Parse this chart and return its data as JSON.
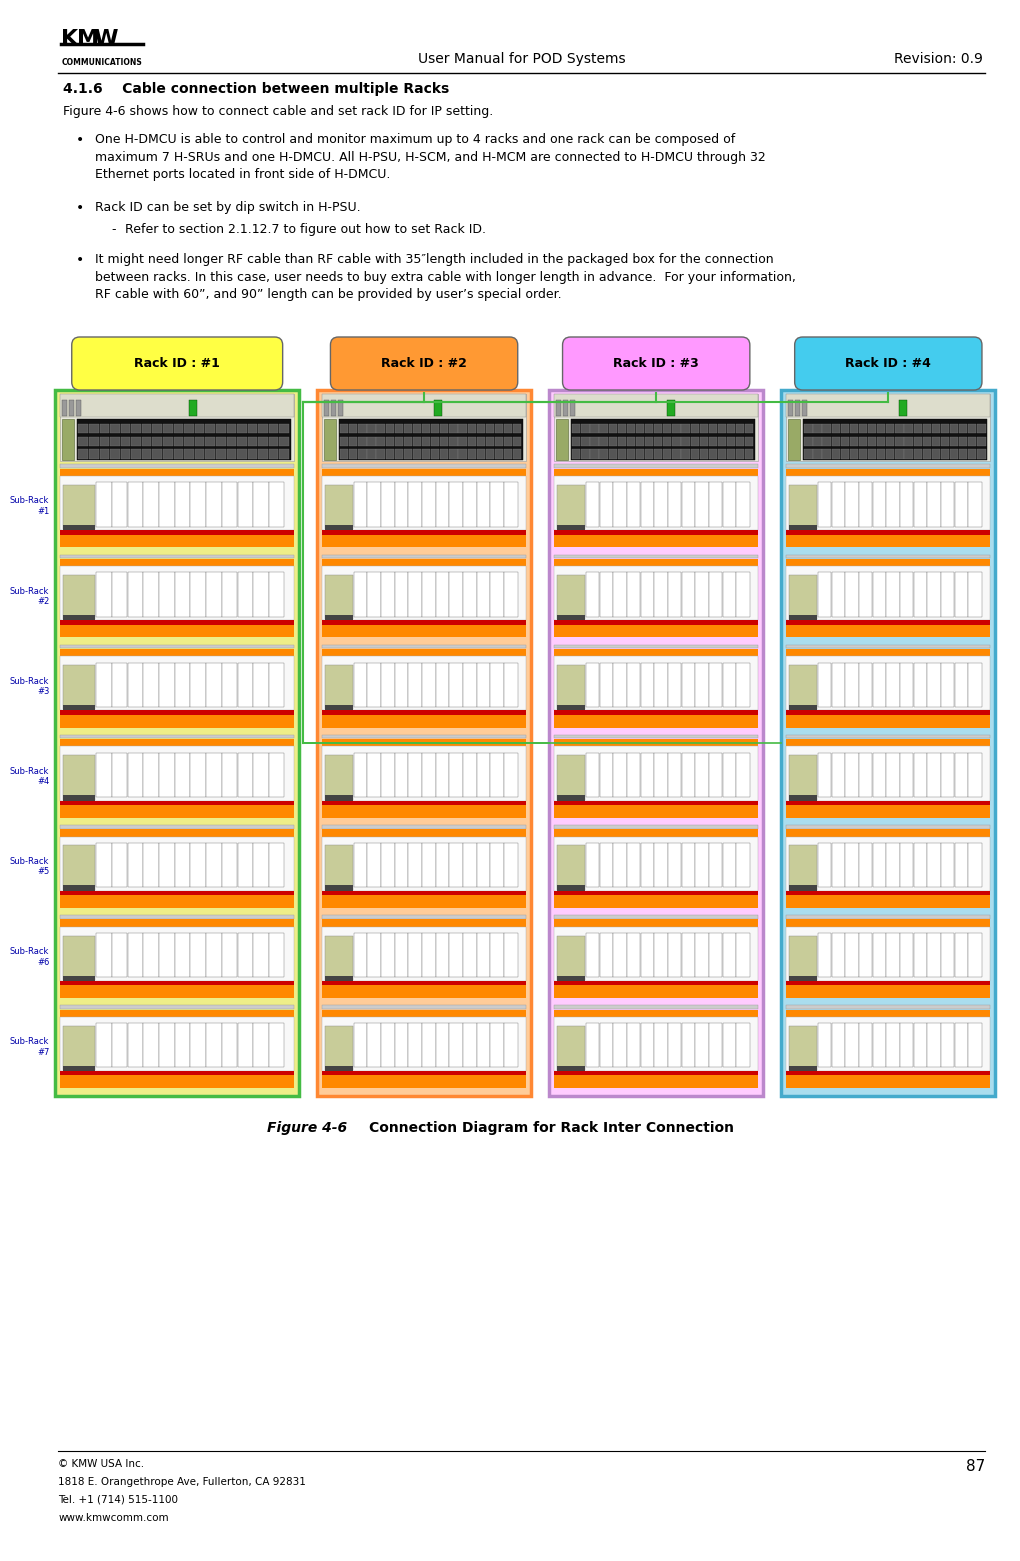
{
  "page_width": 9.77,
  "page_height": 15.41,
  "bg_color": "#ffffff",
  "header_title": "User Manual for POD Systems",
  "header_revision": "Revision: 0.9",
  "section_title": "4.1.6    Cable connection between multiple Racks",
  "intro_text": "Figure 4-6 shows how to connect cable and set rack ID for IP setting.",
  "bullet1": "One H-DMCU is able to control and monitor maximum up to 4 racks and one rack can be composed of\nmaximum 7 H-SRUs and one H-DMCU. All H-PSU, H-SCM, and H-MCM are connected to H-DMCU through 32\nEthernet ports located in front side of H-DMCU.",
  "bullet2": "Rack ID can be set by dip switch in H-PSU.",
  "sub_bullet": "Refer to section 2.1.12.7 to figure out how to set Rack ID.",
  "bullet3": "It might need longer RF cable than RF cable with 35″length included in the packaged box for the connection\nbetween racks. In this case, user needs to buy extra cable with longer length in advance.  For your information,\nRF cable with 60”, and 90” length can be provided by user’s special order.",
  "figure_label": "Figure 4-6",
  "figure_caption": "Connection Diagram for Rack Inter Connection",
  "rack_labels": [
    "Rack ID : #1",
    "Rack ID : #2",
    "Rack ID : #3",
    "Rack ID : #4"
  ],
  "rack_label_bg": [
    "#ffff44",
    "#ff9933",
    "#ff99ff",
    "#44ccee"
  ],
  "rack_border_colors": [
    "#44bb44",
    "#ff8833",
    "#bb88cc",
    "#44aacc"
  ],
  "rack_outer_bg": [
    "#eeee88",
    "#ffcc99",
    "#ffccff",
    "#aaddee"
  ],
  "sub_rack_labels": [
    "Sub-Rack\n#1",
    "Sub-Rack\n#2",
    "Sub-Rack\n#3",
    "Sub-Rack\n#4",
    "Sub-Rack\n#5",
    "Sub-Rack\n#6",
    "Sub-Rack\n#7"
  ],
  "sub_label_color": "#0000aa",
  "orange_strip_color": "#ff8800",
  "red_strip_color": "#cc0000",
  "dmcu_bg": "#cccc66",
  "footer_line1": "© KMW USA Inc.",
  "footer_line2": "1818 E. Orangethrope Ave, Fullerton, CA 92831",
  "footer_line3": "Tel. +1 (714) 515-1100",
  "footer_line4": "www.kmwcomm.com",
  "page_number": "87"
}
